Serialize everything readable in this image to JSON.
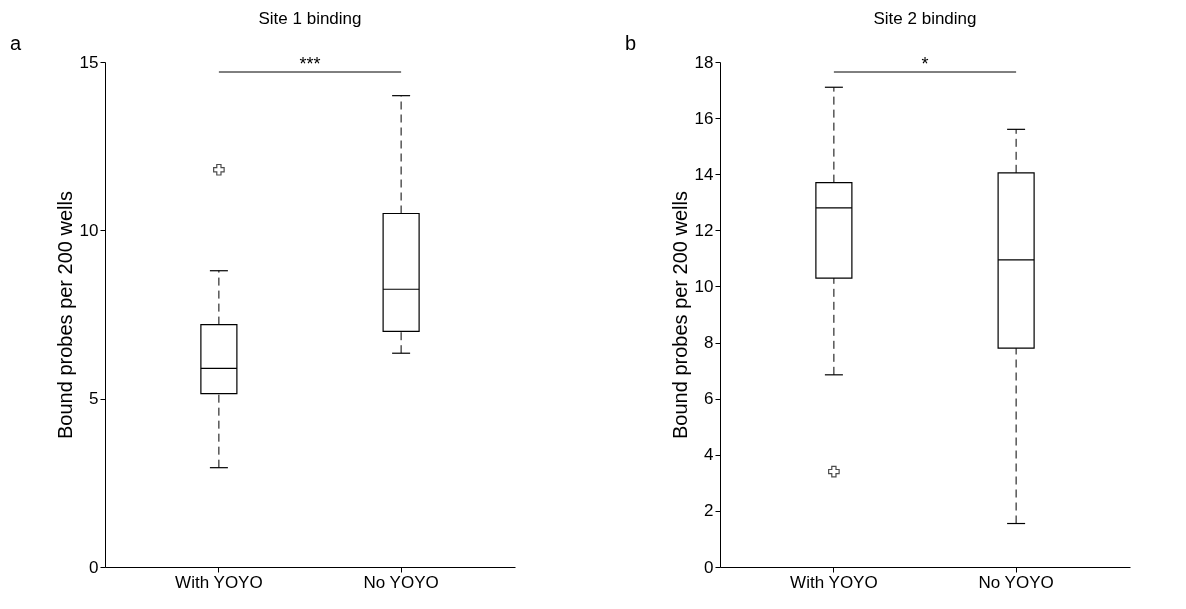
{
  "chart_data": [
    {
      "type": "box",
      "title": "Site 1  binding",
      "ylabel": "Bound probes per 200 wells",
      "categories": [
        "With YOYO",
        "No YOYO"
      ],
      "ylim": [
        0,
        15
      ],
      "yticks": [
        0,
        5,
        10,
        15
      ],
      "grid": false,
      "line_style": "dashed",
      "marker": "cross",
      "boxes": [
        {
          "low": 2.95,
          "q1": 5.15,
          "median": 5.9,
          "q3": 7.2,
          "high": 8.8,
          "outliers": [
            11.8
          ]
        },
        {
          "low": 6.35,
          "q1": 7.0,
          "median": 8.25,
          "q3": 10.5,
          "high": 14.0
        }
      ],
      "annotations": [
        "a",
        "***"
      ]
    },
    {
      "type": "box",
      "title": "Site 2  binding",
      "ylabel": "Bound probes per 200 wells",
      "categories": [
        "With YOYO",
        "No YOYO"
      ],
      "ylim": [
        0,
        18
      ],
      "yticks": [
        0,
        2,
        4,
        6,
        8,
        10,
        12,
        14,
        16,
        18
      ],
      "grid": false,
      "line_style": "dashed",
      "marker": "cross",
      "boxes": [
        {
          "low": 6.85,
          "q1": 10.3,
          "median": 12.8,
          "q3": 13.7,
          "high": 17.1,
          "outliers": [
            3.4
          ]
        },
        {
          "low": 1.55,
          "q1": 7.8,
          "median": 10.95,
          "q3": 14.05,
          "high": 15.6
        }
      ],
      "annotations": [
        "b",
        "*"
      ]
    }
  ]
}
